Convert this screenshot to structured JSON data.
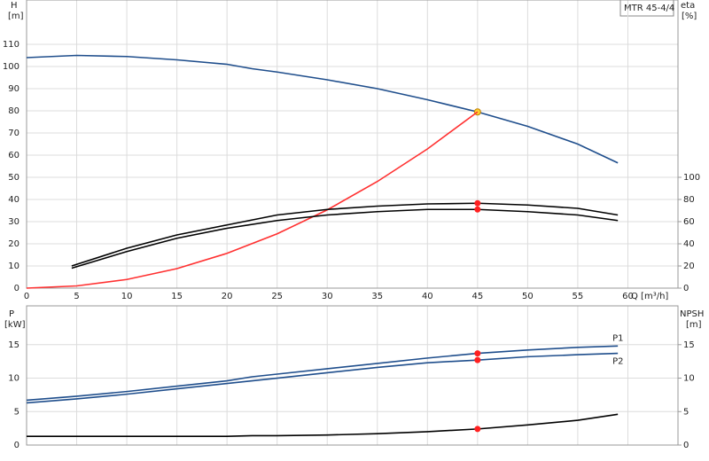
{
  "chart_data": [
    {
      "type": "line",
      "title": "MTR 45-4/4",
      "xlabel": "Q [m³/h]",
      "ylabel": "H",
      "yunit": "[m]",
      "y2label": "eta",
      "y2unit": "[%]",
      "xlim": [
        0,
        65
      ],
      "xticks": [
        0,
        5,
        10,
        15,
        20,
        25,
        30,
        35,
        40,
        45,
        50,
        55,
        60
      ],
      "ylim": [
        0,
        130
      ],
      "yticks": [
        0,
        10,
        20,
        30,
        40,
        50,
        60,
        70,
        80,
        90,
        100,
        110
      ],
      "y2lim": [
        0,
        260
      ],
      "y2ticks": [
        0,
        20,
        40,
        60,
        80,
        100
      ],
      "grid": true,
      "series": [
        {
          "color": "#1f4e8c",
          "x": [
            0,
            5,
            10,
            15,
            20,
            22.5,
            25,
            30,
            35,
            40,
            45,
            50,
            55,
            59
          ],
          "values": [
            104,
            105,
            104.5,
            103,
            101,
            99,
            97.5,
            94,
            90,
            85,
            79.5,
            73,
            65,
            56.5
          ],
          "marker": {
            "x": 45,
            "value": 79.5,
            "color": "#ffd030"
          }
        },
        {
          "color": "#ff3030",
          "x": [
            0,
            5,
            10,
            15,
            20,
            25,
            30,
            35,
            40,
            45
          ],
          "values": [
            0,
            1,
            3.9,
            8.8,
            15.7,
            24.5,
            35.3,
            48.1,
            62.8,
            79.5
          ]
        },
        {
          "color": "#000000",
          "axis": "y2",
          "x": [
            4.5,
            10,
            15,
            20,
            25,
            30,
            35,
            40,
            45,
            50,
            55,
            59
          ],
          "values": [
            20,
            36,
            48,
            57,
            66,
            71,
            74,
            76,
            76.6,
            75,
            72,
            66
          ],
          "marker": {
            "x": 45,
            "value": 76.6,
            "color": "#ff2020"
          }
        },
        {
          "color": "#000000",
          "axis": "y2",
          "x": [
            4.5,
            10,
            15,
            20,
            25,
            30,
            35,
            40,
            45,
            50,
            55,
            59
          ],
          "values": [
            18,
            33,
            45,
            54,
            61,
            66,
            69,
            71,
            71,
            69,
            66,
            61
          ],
          "marker": {
            "x": 45,
            "value": 71,
            "color": "#ff2020"
          }
        }
      ]
    },
    {
      "type": "line",
      "ylabel": "P",
      "yunit": "[kW]",
      "y2label": "NPSH",
      "y2unit": "[m]",
      "xlim": [
        0,
        65
      ],
      "ylim": [
        0,
        20.8
      ],
      "yticks": [
        0,
        5,
        10,
        15
      ],
      "y2lim": [
        0,
        20.8
      ],
      "y2ticks": [
        0,
        5,
        10,
        15
      ],
      "grid": true,
      "series": [
        {
          "name": "P1",
          "color": "#1f4e8c",
          "x": [
            0,
            5,
            10,
            15,
            20,
            22.5,
            25,
            30,
            35,
            40,
            45,
            50,
            55,
            59
          ],
          "values": [
            6.7,
            7.3,
            8,
            8.8,
            9.6,
            10.2,
            10.6,
            11.4,
            12.2,
            13,
            13.7,
            14.2,
            14.6,
            14.8
          ],
          "marker": {
            "x": 45,
            "value": 13.7,
            "color": "#ff2020"
          }
        },
        {
          "name": "P2",
          "color": "#1f4e8c",
          "x": [
            0,
            5,
            10,
            15,
            20,
            22.5,
            25,
            30,
            35,
            40,
            45,
            50,
            55,
            59
          ],
          "values": [
            6.3,
            6.9,
            7.6,
            8.4,
            9.2,
            9.6,
            10,
            10.8,
            11.6,
            12.3,
            12.7,
            13.2,
            13.5,
            13.7
          ],
          "marker": {
            "x": 45,
            "value": 12.7,
            "color": "#ff2020"
          }
        },
        {
          "color": "#000000",
          "axis": "y2",
          "x": [
            0,
            10,
            20,
            22.5,
            25,
            30,
            35,
            40,
            45,
            50,
            55,
            59
          ],
          "values": [
            1.3,
            1.3,
            1.3,
            1.4,
            1.4,
            1.5,
            1.7,
            2,
            2.4,
            3,
            3.7,
            4.6
          ],
          "marker": {
            "x": 45,
            "value": 2.4,
            "color": "#ff2020"
          }
        }
      ]
    }
  ]
}
